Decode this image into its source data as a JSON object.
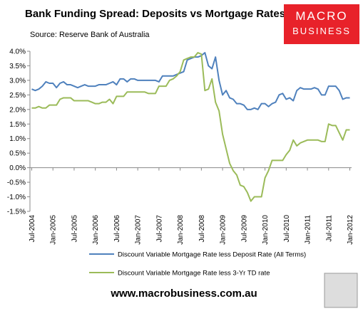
{
  "chart_data": {
    "type": "line",
    "title": "Bank Funding Spread: Deposits vs Mortgage Rates",
    "subtitle": "Source: Reserve Bank of Australia",
    "categories": [
      "Jul-2004",
      null,
      null,
      null,
      null,
      null,
      "Jan-2005",
      null,
      null,
      null,
      null,
      null,
      "Jul-2005",
      null,
      null,
      null,
      null,
      null,
      "Jan-2006",
      null,
      null,
      null,
      null,
      null,
      "Jul-2006",
      null,
      null,
      null,
      null,
      null,
      "Jan-2007",
      null,
      null,
      null,
      null,
      null,
      "Jul-2007",
      null,
      null,
      null,
      null,
      null,
      "Jan-2008",
      null,
      null,
      null,
      null,
      null,
      "Jul-2008",
      null,
      null,
      null,
      null,
      null,
      "Jan-2009",
      null,
      null,
      null,
      null,
      null,
      "Jul-2009",
      null,
      null,
      null,
      null,
      null,
      "Jan-2010",
      null,
      null,
      null,
      null,
      null,
      "Jul-2010",
      null,
      null,
      null,
      null,
      null,
      "Jan-2011",
      null,
      null,
      null,
      null,
      null,
      "Jul-2011",
      null,
      null,
      null,
      null,
      null,
      "Jan-2012"
    ],
    "series": [
      {
        "name": "Discount Variable Mortgage Rate less Deposit Rate (All Terms)",
        "color": "#4f81bd",
        "values": [
          2.7,
          2.65,
          2.7,
          2.8,
          2.95,
          2.9,
          2.9,
          2.75,
          2.9,
          2.95,
          2.85,
          2.85,
          2.8,
          2.75,
          2.8,
          2.85,
          2.8,
          2.8,
          2.8,
          2.85,
          2.85,
          2.85,
          2.9,
          2.95,
          2.85,
          3.05,
          3.05,
          2.95,
          3.05,
          3.05,
          3.0,
          3.0,
          3.0,
          3.0,
          3.0,
          3.0,
          2.95,
          3.15,
          3.15,
          3.15,
          3.15,
          3.2,
          3.25,
          3.3,
          3.7,
          3.75,
          3.8,
          3.8,
          3.85,
          3.95,
          3.5,
          3.4,
          3.8,
          3.0,
          2.5,
          2.65,
          2.4,
          2.35,
          2.2,
          2.2,
          2.15,
          2.0,
          2.0,
          2.05,
          2.0,
          2.2,
          2.2,
          2.1,
          2.2,
          2.25,
          2.5,
          2.55,
          2.35,
          2.4,
          2.3,
          2.65,
          2.75,
          2.7,
          2.7,
          2.7,
          2.75,
          2.7,
          2.5,
          2.5,
          2.8,
          2.8,
          2.8,
          2.65,
          2.35,
          2.4,
          2.4
        ]
      },
      {
        "name": "Discount Variable Mortgage Rate less 3-Yr TD rate",
        "color": "#9bbb59",
        "values": [
          2.05,
          2.05,
          2.1,
          2.05,
          2.05,
          2.15,
          2.15,
          2.15,
          2.35,
          2.4,
          2.4,
          2.4,
          2.3,
          2.3,
          2.3,
          2.3,
          2.3,
          2.25,
          2.2,
          2.2,
          2.25,
          2.25,
          2.35,
          2.2,
          2.45,
          2.45,
          2.45,
          2.6,
          2.6,
          2.6,
          2.6,
          2.6,
          2.6,
          2.55,
          2.55,
          2.55,
          2.8,
          2.8,
          2.8,
          3.0,
          3.05,
          3.15,
          3.3,
          3.7,
          3.75,
          3.8,
          3.8,
          3.95,
          3.9,
          2.65,
          2.7,
          3.05,
          2.25,
          1.95,
          1.15,
          0.65,
          0.15,
          -0.1,
          -0.25,
          -0.6,
          -0.65,
          -0.85,
          -1.15,
          -1.0,
          -1.0,
          -1.0,
          -0.35,
          -0.1,
          0.25,
          0.25,
          0.25,
          0.25,
          0.45,
          0.6,
          0.95,
          0.75,
          0.85,
          0.9,
          0.95,
          0.95,
          0.95,
          0.95,
          0.9,
          0.9,
          1.5,
          1.45,
          1.45,
          1.2,
          0.95,
          1.3,
          1.3
        ]
      }
    ],
    "ylim": [
      -1.5,
      4
    ],
    "yticks": [
      {
        "value": 4,
        "label": "4.0%"
      },
      {
        "value": 3.5,
        "label": "3.5%"
      },
      {
        "value": 3,
        "label": "3.0%"
      },
      {
        "value": 2.5,
        "label": "2.5%"
      },
      {
        "value": 2,
        "label": "2.0%"
      },
      {
        "value": 1.5,
        "label": "1.5%"
      },
      {
        "value": 1,
        "label": "1.0%"
      },
      {
        "value": 0.5,
        "label": "0.5%"
      },
      {
        "value": 0,
        "label": "0.0%"
      },
      {
        "value": -0.5,
        "label": "-0.5%"
      },
      {
        "value": -1,
        "label": "-1.0%"
      },
      {
        "value": -1.5,
        "label": "-1.5%"
      }
    ],
    "grid": false,
    "legend": "bottom"
  },
  "logo": {
    "line1": "MACRO",
    "line2": "BUSINESS"
  },
  "footer": "www.macrobusiness.com.au"
}
